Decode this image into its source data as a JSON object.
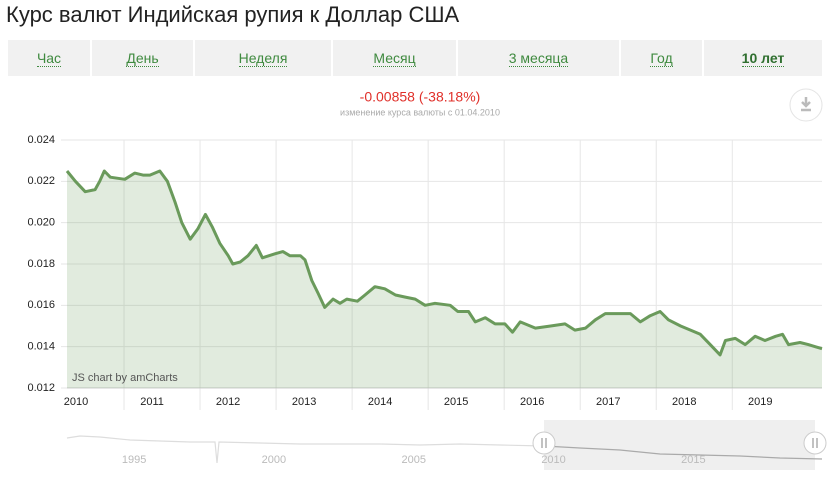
{
  "header": {
    "title": "Курс валют Индийская рупия к Доллар США"
  },
  "tabs": [
    "Час",
    "День",
    "Неделя",
    "Месяц",
    "3 месяца",
    "Год",
    "10 лет"
  ],
  "active_tab": 6,
  "chart_data": {
    "type": "area",
    "title": "-0.00858 (-38.18%)",
    "subtitle": "изменение курса валюты с 01.04.2010",
    "credit": "JS chart by amCharts",
    "color": "#6a9a5b",
    "x": [
      2010.25,
      2010.36,
      2010.49,
      2010.62,
      2010.68,
      2010.74,
      2010.82,
      2011.01,
      2011.14,
      2011.25,
      2011.34,
      2011.47,
      2011.57,
      2011.67,
      2011.76,
      2011.87,
      2011.97,
      2012.07,
      2012.16,
      2012.26,
      2012.37,
      2012.43,
      2012.53,
      2012.63,
      2012.74,
      2012.82,
      2012.99,
      2013.09,
      2013.18,
      2013.32,
      2013.38,
      2013.47,
      2013.55,
      2013.64,
      2013.75,
      2013.84,
      2013.93,
      2014.07,
      2014.17,
      2014.3,
      2014.43,
      2014.57,
      2014.7,
      2014.83,
      2014.96,
      2015.09,
      2015.29,
      2015.39,
      2015.53,
      2015.62,
      2015.75,
      2015.88,
      2016.01,
      2016.11,
      2016.21,
      2016.41,
      2016.61,
      2016.8,
      2016.93,
      2017.07,
      2017.2,
      2017.33,
      2017.53,
      2017.66,
      2017.79,
      2017.92,
      2018.05,
      2018.16,
      2018.32,
      2018.45,
      2018.58,
      2018.71,
      2018.84,
      2018.91,
      2019.04,
      2019.17,
      2019.3,
      2019.43,
      2019.57,
      2019.66,
      2019.74,
      2019.89,
      2020.0,
      2020.09,
      2020.18
    ],
    "values": [
      0.0225,
      0.022,
      0.0215,
      0.0216,
      0.022,
      0.0225,
      0.0222,
      0.0221,
      0.0224,
      0.0223,
      0.0223,
      0.0225,
      0.022,
      0.021,
      0.02,
      0.0192,
      0.0197,
      0.0204,
      0.0198,
      0.019,
      0.0184,
      0.018,
      0.0181,
      0.0184,
      0.0189,
      0.0183,
      0.0185,
      0.0186,
      0.0184,
      0.0184,
      0.0182,
      0.0172,
      0.0166,
      0.0159,
      0.0163,
      0.0161,
      0.0163,
      0.0162,
      0.0165,
      0.0169,
      0.0168,
      0.0165,
      0.0164,
      0.0163,
      0.016,
      0.0161,
      0.016,
      0.0157,
      0.0157,
      0.0152,
      0.0154,
      0.0151,
      0.0151,
      0.0147,
      0.0152,
      0.0149,
      0.015,
      0.0151,
      0.0148,
      0.0149,
      0.0153,
      0.0156,
      0.0156,
      0.0156,
      0.0152,
      0.0155,
      0.0157,
      0.0153,
      0.015,
      0.0148,
      0.0146,
      0.0141,
      0.0136,
      0.0143,
      0.0144,
      0.0141,
      0.0145,
      0.0143,
      0.0145,
      0.0146,
      0.0141,
      0.0142,
      0.0141,
      0.014,
      0.0139
    ],
    "xlim": [
      2010.25,
      2020.18
    ],
    "xticks": [
      2010,
      2011,
      2012,
      2013,
      2014,
      2015,
      2016,
      2017,
      2018,
      2019
    ],
    "ylim": [
      0.012,
      0.024
    ],
    "yticks": [
      0.012,
      0.014,
      0.016,
      0.018,
      {
        "value": 0.02,
        "label": "0.020"
      },
      0.022,
      0.024
    ],
    "grid": true,
    "navigator": {
      "xlim": [
        1992.6,
        2019.6
      ],
      "xticks": [
        1995,
        2000,
        2005,
        2010,
        2015
      ]
    }
  }
}
